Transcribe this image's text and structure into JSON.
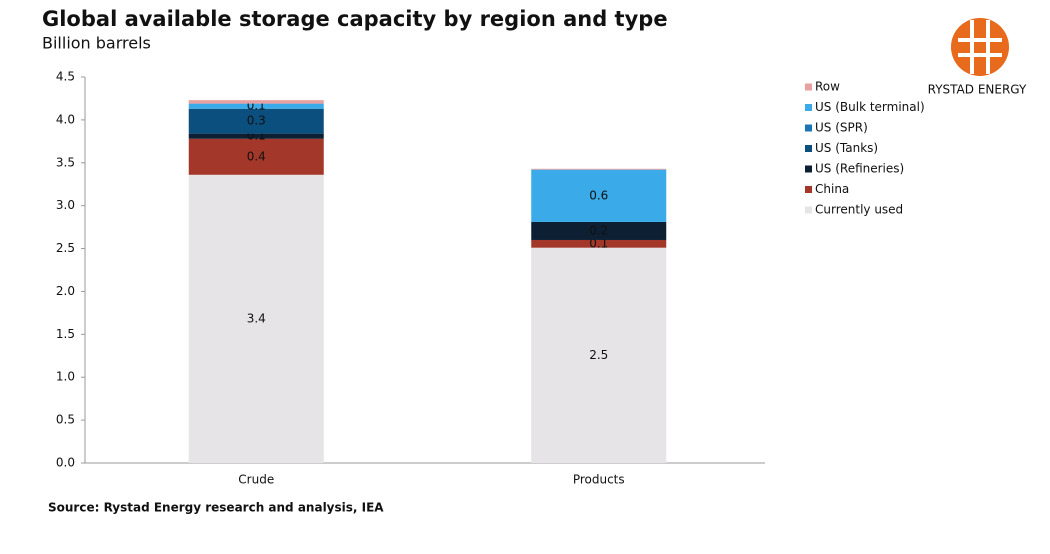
{
  "chart_data": {
    "type": "stacked_bar",
    "title": "Global available storage capacity by region and type",
    "subtitle": "Billion barrels",
    "source": "Source: Rystad Energy research and analysis, IEA",
    "logo_text": "RYSTAD ENERGY",
    "categories": [
      "Crude",
      "Products"
    ],
    "ylim": [
      0,
      4.5
    ],
    "yticks": [
      {
        "value": 0,
        "label": "0.0"
      },
      0.5,
      {
        "value": 1,
        "label": "1.0"
      },
      1.5,
      {
        "value": 2,
        "label": "2.0"
      },
      2.5,
      {
        "value": 3,
        "label": "3.0"
      },
      3.5,
      {
        "value": 4,
        "label": "4.0"
      },
      4.5
    ],
    "series": [
      {
        "name": "Currently used",
        "color": "#e6e4e6",
        "values": [
          3.36,
          2.51
        ],
        "value_labels": [
          "3.4",
          "2.5"
        ]
      },
      {
        "name": "China",
        "color": "#a3382a",
        "values": [
          0.42,
          0.09
        ],
        "value_labels": [
          "0.4",
          "0.1"
        ]
      },
      {
        "name": "US (Refineries)",
        "color": "#0d1f33",
        "values": [
          0.06,
          0.21
        ],
        "value_labels": [
          "0.1",
          "0.2"
        ]
      },
      {
        "name": "US (Tanks)",
        "color": "#0b4f7e",
        "values": [
          0.29,
          null
        ],
        "value_labels": [
          "0.3",
          null
        ]
      },
      {
        "name": "US (SPR)",
        "color": "#1a74b8",
        "values": [
          null,
          null
        ],
        "value_labels": [
          null,
          null
        ]
      },
      {
        "name": "US (Bulk terminal)",
        "color": "#3aaae8",
        "values": [
          0.06,
          0.61
        ],
        "value_labels": [
          "0.1",
          "0.6"
        ]
      },
      {
        "name": "Row",
        "color": "#e8a0a0",
        "values": [
          0.04,
          0.01
        ],
        "value_labels": [
          null,
          null
        ]
      }
    ]
  }
}
